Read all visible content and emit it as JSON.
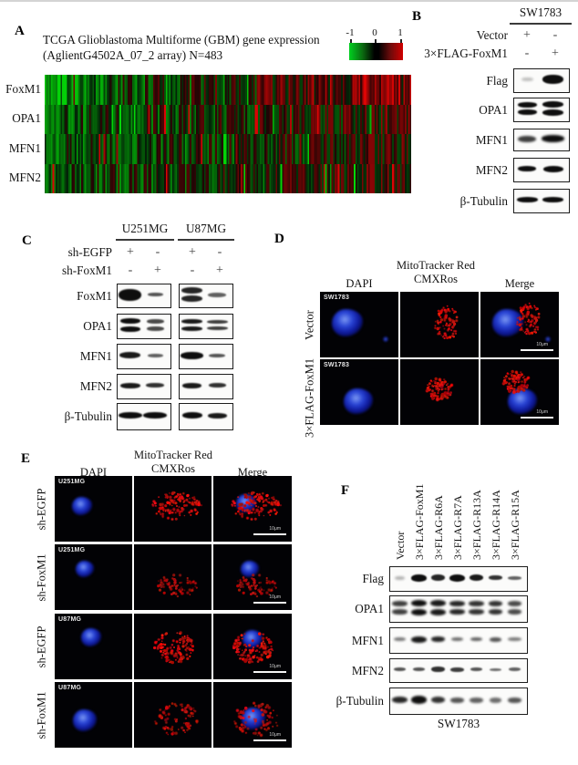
{
  "panels": {
    "A": {
      "label": "A",
      "title_line1": "TCGA Glioblastoma Multiforme (GBM) gene expression",
      "title_line2": "(AglientG4502A_07_2 array) N=483",
      "colorbar_ticks": [
        "-1",
        "0",
        "1"
      ],
      "colorbar_colors": {
        "low": "#00cc22",
        "mid": "#000000",
        "high": "#cc0000"
      },
      "gene_labels": [
        "FoxM1",
        "OPA1",
        "MFN1",
        "MFN2"
      ],
      "chart_data": {
        "type": "heatmap",
        "title": "TCGA Glioblastoma Multiforme (GBM) gene expression (AglientG4502A_07_2 array) N=483",
        "rows": [
          "FoxM1",
          "OPA1",
          "MFN1",
          "MFN2"
        ],
        "n_samples": 483,
        "value_range": [
          -1,
          1
        ],
        "colorscale": [
          "green",
          "black",
          "red"
        ],
        "legend_position": "top-right",
        "description": "Samples ordered by FoxM1 expression from low (green) to high (red); OPA1, MFN1 and MFN2 show a correlated green-to-red trend",
        "row_render": [
          {
            "gene": "FoxM1",
            "seed": 101,
            "base": 0.05,
            "trend": 0.62,
            "noise": 0.5
          },
          {
            "gene": "OPA1",
            "seed": 202,
            "base": -0.05,
            "trend": 0.32,
            "noise": 0.45
          },
          {
            "gene": "MFN1",
            "seed": 303,
            "base": -0.1,
            "trend": 0.28,
            "noise": 0.42
          },
          {
            "gene": "MFN2",
            "seed": 404,
            "base": -0.05,
            "trend": 0.26,
            "noise": 0.42
          }
        ]
      }
    },
    "B": {
      "label": "B",
      "cell_line": "SW1783",
      "condition_rows": [
        {
          "name": "Vector",
          "values": [
            "+",
            "-"
          ]
        },
        {
          "name": "3×FLAG-FoxM1",
          "values": [
            "-",
            "+"
          ]
        }
      ],
      "blots": [
        {
          "protein": "Flag",
          "lanes": [
            {
              "i": 0.25,
              "w": 0.45,
              "h": 4,
              "fz": 1
            },
            {
              "i": 1,
              "w": 0.8,
              "h": 10
            }
          ]
        },
        {
          "protein": "OPA1",
          "lanes": [
            {
              "i": 1,
              "w": 0.72,
              "h": 6,
              "d": 1
            },
            {
              "i": 1,
              "w": 0.82,
              "h": 7,
              "d": 1
            }
          ]
        },
        {
          "protein": "MFN1",
          "lanes": [
            {
              "i": 0.8,
              "w": 0.7,
              "h": 7,
              "fz": 1
            },
            {
              "i": 1,
              "w": 0.88,
              "h": 8,
              "fz": 1
            }
          ]
        },
        {
          "protein": "MFN2",
          "lanes": [
            {
              "i": 1,
              "w": 0.7,
              "h": 6
            },
            {
              "i": 1,
              "w": 0.78,
              "h": 7
            }
          ]
        },
        {
          "protein": "β-Tubulin",
          "lanes": [
            {
              "i": 1,
              "w": 0.8,
              "h": 6
            },
            {
              "i": 1,
              "w": 0.82,
              "h": 6
            }
          ]
        }
      ]
    },
    "C": {
      "label": "C",
      "cell_lines": [
        "U251MG",
        "U87MG"
      ],
      "condition_rows": [
        {
          "name": "sh-EGFP",
          "values": [
            "+",
            "-",
            "+",
            "-"
          ]
        },
        {
          "name": "sh-FoxM1",
          "values": [
            "-",
            "+",
            "-",
            "+"
          ]
        }
      ],
      "blots": [
        {
          "protein": "FoxM1",
          "groups": [
            [
              {
                "i": 1,
                "w": 0.9,
                "h": 13
              },
              {
                "i": 0.7,
                "w": 0.6,
                "h": 4
              }
            ],
            [
              {
                "i": 0.9,
                "w": 0.85,
                "h": 7,
                "d": 1
              },
              {
                "i": 0.65,
                "w": 0.75,
                "h": 5
              }
            ]
          ]
        },
        {
          "protein": "OPA1",
          "groups": [
            [
              {
                "i": 1,
                "w": 0.8,
                "h": 6,
                "d": 1
              },
              {
                "i": 0.75,
                "w": 0.7,
                "h": 5,
                "d": 1
              }
            ],
            [
              {
                "i": 0.95,
                "w": 0.85,
                "h": 5,
                "d": 1
              },
              {
                "i": 0.8,
                "w": 0.85,
                "h": 4,
                "d": 1
              }
            ]
          ]
        },
        {
          "protein": "MFN1",
          "groups": [
            [
              {
                "i": 0.95,
                "w": 0.85,
                "h": 7
              },
              {
                "i": 0.65,
                "w": 0.6,
                "h": 4
              }
            ],
            [
              {
                "i": 1,
                "w": 0.9,
                "h": 8
              },
              {
                "i": 0.7,
                "w": 0.65,
                "h": 4
              }
            ]
          ]
        },
        {
          "protein": "MFN2",
          "groups": [
            [
              {
                "i": 0.95,
                "w": 0.8,
                "h": 6
              },
              {
                "i": 0.85,
                "w": 0.72,
                "h": 5
              }
            ],
            [
              {
                "i": 0.95,
                "w": 0.75,
                "h": 6
              },
              {
                "i": 0.85,
                "w": 0.68,
                "h": 5
              }
            ]
          ]
        },
        {
          "protein": "β-Tubulin",
          "groups": [
            [
              {
                "i": 1,
                "w": 0.95,
                "h": 7
              },
              {
                "i": 1,
                "w": 0.95,
                "h": 7
              }
            ],
            [
              {
                "i": 1,
                "w": 0.8,
                "h": 7
              },
              {
                "i": 0.95,
                "w": 0.78,
                "h": 6
              }
            ]
          ]
        }
      ]
    },
    "D": {
      "label": "D",
      "headers": {
        "mito_line1": "MitoTracker Red",
        "mito_line2": "CMXRos",
        "dapi": "DAPI",
        "merge": "Merge"
      },
      "scalebar_text": "10μm",
      "rows": [
        {
          "row_label": "Vector",
          "corner_label": "SW1783",
          "cells": [
            {
              "lbl": "SW1783",
              "ch": "b",
              "n": {
                "x": 30,
                "y": 34,
                "r": 17
              },
              "n2": {
                "x": 72,
                "y": 52,
                "r": 3
              }
            },
            {
              "ch": "r",
              "m": {
                "x": 50,
                "y": 34,
                "sx": 13,
                "sy": 20,
                "N": 90,
                "seed": 11
              }
            },
            {
              "ch": "br",
              "sb": 1,
              "n": {
                "x": 30,
                "y": 34,
                "r": 17
              },
              "n2": {
                "x": 74,
                "y": 52,
                "r": 3
              },
              "m": {
                "x": 52,
                "y": 30,
                "sx": 13,
                "sy": 19,
                "N": 90,
                "seed": 11
              }
            }
          ]
        },
        {
          "row_label": "3×FLAG-FoxM1",
          "corner_label": "SW1783",
          "cells": [
            {
              "lbl": "SW1783",
              "ch": "b",
              "n": {
                "x": 42,
                "y": 46,
                "r": 16
              }
            },
            {
              "ch": "r",
              "m": {
                "x": 42,
                "y": 32,
                "sx": 15,
                "sy": 12,
                "N": 100,
                "seed": 22
              }
            },
            {
              "ch": "br",
              "sb": 1,
              "n": {
                "x": 46,
                "y": 46,
                "r": 16
              },
              "m": {
                "x": 38,
                "y": 24,
                "sx": 15,
                "sy": 12,
                "N": 100,
                "seed": 22
              }
            }
          ]
        }
      ]
    },
    "E": {
      "label": "E",
      "headers": {
        "mito_line1": "MitoTracker Red",
        "mito_line2": "CMXRos",
        "dapi": "DAPI",
        "merge": "Merge"
      },
      "scalebar_text": "10μm",
      "rows": [
        {
          "row_label": "sh-EGFP",
          "corner_label": "U251MG",
          "cells": [
            {
              "lbl": "U251MG",
              "ch": "b",
              "n": {
                "x": 30,
                "y": 33,
                "r": 11
              }
            },
            {
              "ch": "r",
              "m": {
                "x": 46,
                "y": 32,
                "sx": 27,
                "sy": 15,
                "N": 130,
                "seed": 31
              }
            },
            {
              "ch": "br",
              "sb": 1,
              "n": {
                "x": 36,
                "y": 30,
                "r": 11
              },
              "m": {
                "x": 46,
                "y": 32,
                "sx": 27,
                "sy": 15,
                "N": 130,
                "seed": 31
              }
            }
          ]
        },
        {
          "row_label": "sh-FoxM1",
          "corner_label": "U251MG",
          "cells": [
            {
              "lbl": "U251MG",
              "ch": "b",
              "n": {
                "x": 33,
                "y": 27,
                "r": 10
              }
            },
            {
              "ch": "r",
              "m": {
                "x": 47,
                "y": 44,
                "sx": 23,
                "sy": 13,
                "N": 70,
                "seed": 42,
                "op": 0.8
              }
            },
            {
              "ch": "br",
              "sb": 1,
              "n": {
                "x": 40,
                "y": 27,
                "r": 10
              },
              "m": {
                "x": 47,
                "y": 44,
                "sx": 23,
                "sy": 13,
                "N": 70,
                "seed": 42,
                "op": 0.8
              }
            }
          ]
        },
        {
          "row_label": "sh-EGFP",
          "corner_label": "U87MG",
          "cells": [
            {
              "lbl": "U87MG",
              "ch": "b",
              "n": {
                "x": 40,
                "y": 26,
                "r": 11
              }
            },
            {
              "ch": "r",
              "m": {
                "x": 43,
                "y": 36,
                "sx": 22,
                "sy": 17,
                "N": 150,
                "seed": 53,
                "hx": 43,
                "hy": 30,
                "hr": 10
              }
            },
            {
              "ch": "br",
              "sb": 1,
              "n": {
                "x": 43,
                "y": 28,
                "r": 11
              },
              "m": {
                "x": 43,
                "y": 36,
                "sx": 22,
                "sy": 17,
                "N": 150,
                "seed": 53,
                "hx": 43,
                "hy": 28,
                "hr": 10
              }
            }
          ]
        },
        {
          "row_label": "sh-FoxM1",
          "corner_label": "U87MG",
          "cells": [
            {
              "lbl": "U87MG",
              "ch": "b",
              "n": {
                "x": 33,
                "y": 42,
                "r": 13
              }
            },
            {
              "ch": "r",
              "m": {
                "x": 46,
                "y": 40,
                "sx": 25,
                "sy": 18,
                "N": 90,
                "seed": 64,
                "hx": 46,
                "hy": 40,
                "hr": 9,
                "op": 0.85
              }
            },
            {
              "ch": "br",
              "sb": 1,
              "n": {
                "x": 44,
                "y": 40,
                "r": 13
              },
              "m": {
                "x": 46,
                "y": 40,
                "sx": 25,
                "sy": 18,
                "N": 90,
                "seed": 64,
                "hx": 44,
                "hy": 40,
                "hr": 9,
                "op": 0.85
              }
            }
          ]
        }
      ]
    },
    "F": {
      "label": "F",
      "cell_line": "SW1783",
      "lane_labels": [
        "Vector",
        "3×FLAG-FoxM1",
        "3×FLAG-R6A",
        "3×FLAG-R7A",
        "3×FLAG-R13A",
        "3×FLAG-R14A",
        "3×FLAG-R15A"
      ],
      "blots": [
        {
          "protein": "Flag",
          "lanes": [
            {
              "i": 0.3,
              "w": 0.5,
              "h": 4,
              "fz": 1
            },
            {
              "i": 1,
              "w": 0.8,
              "h": 8
            },
            {
              "i": 0.9,
              "w": 0.7,
              "h": 7
            },
            {
              "i": 1,
              "w": 0.85,
              "h": 8
            },
            {
              "i": 0.95,
              "w": 0.75,
              "h": 7
            },
            {
              "i": 0.85,
              "w": 0.7,
              "h": 5
            },
            {
              "i": 0.65,
              "w": 0.75,
              "h": 4
            }
          ]
        },
        {
          "protein": "OPA1",
          "lanes": [
            {
              "i": 0.8,
              "w": 0.8,
              "h": 6,
              "d": 1,
              "fz": 1
            },
            {
              "i": 1,
              "w": 0.85,
              "h": 7,
              "d": 1,
              "fz": 1
            },
            {
              "i": 0.95,
              "w": 0.85,
              "h": 7,
              "d": 1,
              "fz": 1
            },
            {
              "i": 0.9,
              "w": 0.8,
              "h": 6,
              "d": 1,
              "fz": 1
            },
            {
              "i": 0.85,
              "w": 0.8,
              "h": 6,
              "d": 1,
              "fz": 1
            },
            {
              "i": 0.85,
              "w": 0.75,
              "h": 6,
              "d": 1,
              "fz": 1
            },
            {
              "i": 0.75,
              "w": 0.75,
              "h": 6,
              "d": 1,
              "fz": 1
            }
          ]
        },
        {
          "protein": "MFN1",
          "lanes": [
            {
              "i": 0.55,
              "w": 0.6,
              "h": 4,
              "fz": 1
            },
            {
              "i": 0.95,
              "w": 0.8,
              "h": 7,
              "fz": 1
            },
            {
              "i": 0.9,
              "w": 0.75,
              "h": 6,
              "fz": 1
            },
            {
              "i": 0.6,
              "w": 0.65,
              "h": 4,
              "fz": 1
            },
            {
              "i": 0.65,
              "w": 0.65,
              "h": 4,
              "fz": 1
            },
            {
              "i": 0.7,
              "w": 0.65,
              "h": 5,
              "fz": 1
            },
            {
              "i": 0.55,
              "w": 0.7,
              "h": 4,
              "fz": 1
            }
          ]
        },
        {
          "protein": "MFN2",
          "lanes": [
            {
              "i": 0.7,
              "w": 0.65,
              "h": 4
            },
            {
              "i": 0.7,
              "w": 0.65,
              "h": 4
            },
            {
              "i": 0.85,
              "w": 0.7,
              "h": 6
            },
            {
              "i": 0.8,
              "w": 0.7,
              "h": 5
            },
            {
              "i": 0.7,
              "w": 0.65,
              "h": 4
            },
            {
              "i": 0.6,
              "w": 0.65,
              "h": 3
            },
            {
              "i": 0.65,
              "w": 0.65,
              "h": 4
            }
          ]
        },
        {
          "protein": "β-Tubulin",
          "lanes": [
            {
              "i": 0.9,
              "w": 0.8,
              "h": 7,
              "fz": 1
            },
            {
              "i": 1,
              "w": 0.85,
              "h": 9,
              "fz": 1
            },
            {
              "i": 0.85,
              "w": 0.75,
              "h": 7,
              "fz": 1
            },
            {
              "i": 0.7,
              "w": 0.7,
              "h": 6,
              "fz": 1
            },
            {
              "i": 0.65,
              "w": 0.7,
              "h": 6,
              "fz": 1
            },
            {
              "i": 0.6,
              "w": 0.65,
              "h": 6,
              "fz": 1
            },
            {
              "i": 0.7,
              "w": 0.7,
              "h": 6,
              "fz": 1
            }
          ]
        }
      ]
    }
  }
}
